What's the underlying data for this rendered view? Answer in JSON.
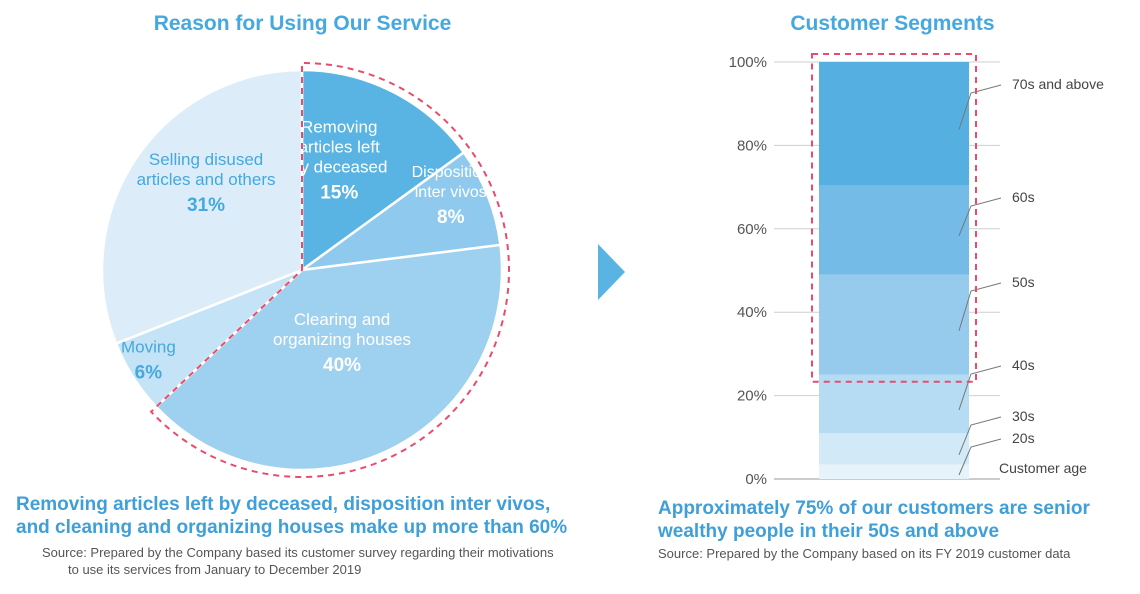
{
  "colors": {
    "accent_blue": "#45a8de",
    "highlight_border": "#ea4b6d",
    "slice_removing": "#59b3e3",
    "slice_disposition": "#8fcaee",
    "slice_clearing": "#9ed0f0",
    "slice_moving": "#c4e3f6",
    "slice_selling": "#dcedf9"
  },
  "left_panel": {
    "title": "Reason for Using Our Service",
    "conclusion_line1": "Removing articles left by deceased, disposition inter vivos,",
    "conclusion_line2": "and cleaning and organizing houses make up more than 60%",
    "source_line1": "Source: Prepared by the Company based its customer survey regarding their motivations",
    "source_line2": "to use its services from January to December 2019"
  },
  "right_panel": {
    "title": "Customer Segments",
    "conclusion_line1": "Approximately 75% of our customers are senior",
    "conclusion_line2": "wealthy people in their 50s and above",
    "source": "Source: Prepared by the Company based on its FY 2019 customer data"
  },
  "arrow_icon": "right-triangle-arrow",
  "chart_data": [
    {
      "type": "pie",
      "title": "Reason for Using Our Service",
      "slices": [
        {
          "label_lines": [
            "Removing",
            "articles left",
            "by deceased"
          ],
          "value": 15,
          "value_label": "15%",
          "color": "#59b3e3",
          "highlighted": true
        },
        {
          "label_lines": [
            "Disposition",
            "inter vivos"
          ],
          "value": 8,
          "value_label": "8%",
          "color": "#8fcaee",
          "highlighted": true
        },
        {
          "label_lines": [
            "Clearing and",
            "organizing houses"
          ],
          "value": 40,
          "value_label": "40%",
          "color": "#9ed0f0",
          "highlighted": true
        },
        {
          "label_lines": [
            "Moving"
          ],
          "value": 6,
          "value_label": "6%",
          "color": "#c4e3f6",
          "highlighted": false
        },
        {
          "label_lines": [
            "Selling disused",
            "articles and others"
          ],
          "value": 31,
          "value_label": "31%",
          "color": "#dcedf9",
          "highlighted": false
        }
      ]
    },
    {
      "type": "bar",
      "stacked": true,
      "title": "Customer Segments",
      "legend_title": "Customer age",
      "ylim": [
        0,
        100
      ],
      "yticks": [
        "0%",
        "20%",
        "40%",
        "60%",
        "80%",
        "100%"
      ],
      "grid": true,
      "segments": [
        {
          "name": "20s",
          "value": 3.5,
          "color": "#e6f3fb"
        },
        {
          "name": "30s",
          "value": 7.5,
          "color": "#d2eaf8"
        },
        {
          "name": "40s",
          "value": 14,
          "color": "#b5dcf3"
        },
        {
          "name": "50s",
          "value": 24,
          "color": "#96cbee"
        },
        {
          "name": "60s",
          "value": 21.5,
          "color": "#74bbe8"
        },
        {
          "name": "70s and above",
          "value": 29.5,
          "color": "#55b0e1"
        }
      ],
      "highlighted_segments": [
        "50s",
        "60s",
        "70s and above"
      ]
    }
  ]
}
